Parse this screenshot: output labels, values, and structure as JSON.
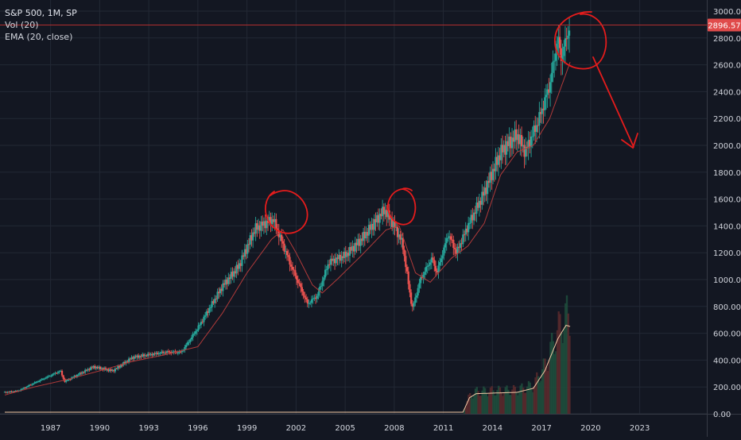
{
  "legend": {
    "symbol": "S&P 500, 1M, SP",
    "volume": "Vol (20)",
    "ema": "EMA (20, close)"
  },
  "price_label": "2896.57",
  "colors": {
    "background": "#131722",
    "grid": "#232834",
    "up": "#26a69a",
    "down": "#ef5350",
    "ema": "#b03a3a",
    "volume_ma": "#f5cba7",
    "annotation": "#e51c1c",
    "price_line": "#b02e2e",
    "price_label_bg": "#e04b4b"
  },
  "chart_data": {
    "type": "candlestick",
    "x_ticks": [
      "1987",
      "1990",
      "1993",
      "1996",
      "1999",
      "2002",
      "2005",
      "2008",
      "2011",
      "2014",
      "2017",
      "2020",
      "2023"
    ],
    "y_ticks": [
      "3000.00",
      "2800.00",
      "2600.00",
      "2400.00",
      "2200.00",
      "2000.00",
      "1800.00",
      "1600.00",
      "1400.00",
      "1200.00",
      "1000.00",
      "800.00",
      "600.00",
      "400.00",
      "200.00",
      "0.00"
    ],
    "ylim": [
      0,
      3000
    ],
    "xlim": [
      1984.2,
      2025.4
    ],
    "last_price": 2896.57,
    "price_path": [
      [
        1984.2,
        160
      ],
      [
        1985.0,
        170
      ],
      [
        1986.0,
        230
      ],
      [
        1987.6,
        320
      ],
      [
        1987.85,
        240
      ],
      [
        1989.6,
        350
      ],
      [
        1990.8,
        320
      ],
      [
        1992.0,
        420
      ],
      [
        1994.0,
        460
      ],
      [
        1995.0,
        460
      ],
      [
        1996.0,
        640
      ],
      [
        1997.5,
        950
      ],
      [
        1998.5,
        1100
      ],
      [
        1999.5,
        1380
      ],
      [
        2000.6,
        1450
      ],
      [
        2001.7,
        1100
      ],
      [
        2002.7,
        820
      ],
      [
        2003.3,
        880
      ],
      [
        2004.0,
        1130
      ],
      [
        2005.0,
        1180
      ],
      [
        2006.0,
        1300
      ],
      [
        2007.4,
        1520
      ],
      [
        2008.0,
        1400
      ],
      [
        2008.5,
        1270
      ],
      [
        2009.1,
        780
      ],
      [
        2009.6,
        1000
      ],
      [
        2010.3,
        1160
      ],
      [
        2010.6,
        1050
      ],
      [
        2011.3,
        1340
      ],
      [
        2011.8,
        1200
      ],
      [
        2012.5,
        1400
      ],
      [
        2013.5,
        1650
      ],
      [
        2014.5,
        1950
      ],
      [
        2015.5,
        2080
      ],
      [
        2016.0,
        1950
      ],
      [
        2016.8,
        2180
      ],
      [
        2017.5,
        2450
      ],
      [
        2018.0,
        2800
      ],
      [
        2018.2,
        2650
      ],
      [
        2018.75,
        2900
      ]
    ],
    "ema_path": [
      [
        1984.2,
        140
      ],
      [
        1986.0,
        200
      ],
      [
        1988.0,
        255
      ],
      [
        1990.0,
        320
      ],
      [
        1992.0,
        390
      ],
      [
        1994.0,
        440
      ],
      [
        1996.0,
        500
      ],
      [
        1997.5,
        750
      ],
      [
        1999.0,
        1050
      ],
      [
        2000.5,
        1300
      ],
      [
        2001.2,
        1370
      ],
      [
        2002.0,
        1200
      ],
      [
        2003.0,
        960
      ],
      [
        2003.6,
        900
      ],
      [
        2004.5,
        1000
      ],
      [
        2006.0,
        1180
      ],
      [
        2007.5,
        1370
      ],
      [
        2008.3,
        1400
      ],
      [
        2009.3,
        1050
      ],
      [
        2010.2,
        980
      ],
      [
        2011.5,
        1160
      ],
      [
        2012.5,
        1250
      ],
      [
        2013.5,
        1420
      ],
      [
        2014.5,
        1780
      ],
      [
        2015.5,
        1950
      ],
      [
        2016.5,
        2000
      ],
      [
        2017.5,
        2200
      ],
      [
        2018.75,
        2620
      ]
    ],
    "volume_ma_path": [
      [
        1984.2,
        12
      ],
      [
        2012.2,
        12
      ],
      [
        2012.6,
        120
      ],
      [
        2013.0,
        150
      ],
      [
        2015.5,
        160
      ],
      [
        2016.5,
        190
      ],
      [
        2017.2,
        320
      ],
      [
        2018.0,
        560
      ],
      [
        2018.5,
        660
      ],
      [
        2018.75,
        650
      ]
    ],
    "annotations": [
      "circle",
      "circle",
      "circle",
      "arrow"
    ]
  }
}
